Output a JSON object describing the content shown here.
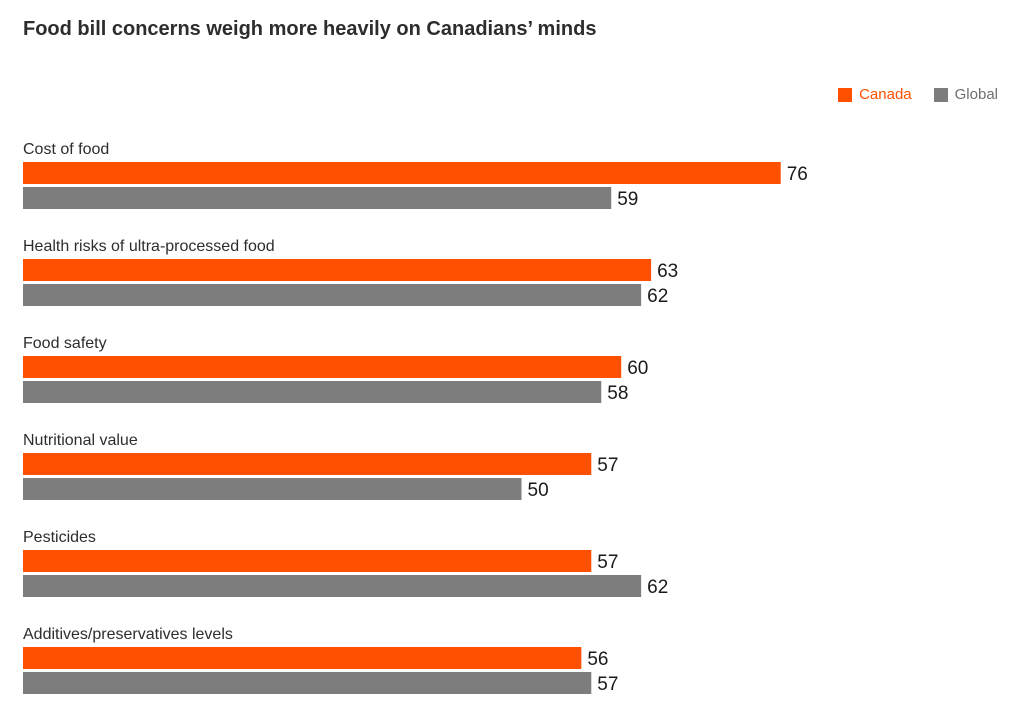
{
  "chart_data": {
    "type": "bar",
    "orientation": "horizontal",
    "title": "Food bill concerns weigh more heavily on Canadians’ minds",
    "categories": [
      "Cost of food",
      "Health risks of ultra-processed food",
      "Food safety",
      "Nutritional value",
      "Pesticides",
      "Additives/preservatives levels"
    ],
    "series": [
      {
        "name": "Canada",
        "color": "#fe5000",
        "values": [
          76,
          63,
          60,
          57,
          57,
          56
        ]
      },
      {
        "name": "Global",
        "color": "#7d7d7d",
        "values": [
          59,
          62,
          58,
          50,
          62,
          57
        ]
      }
    ],
    "xlim": [
      0,
      100
    ],
    "grid": false,
    "legend": "top-right",
    "data_labels": true
  }
}
